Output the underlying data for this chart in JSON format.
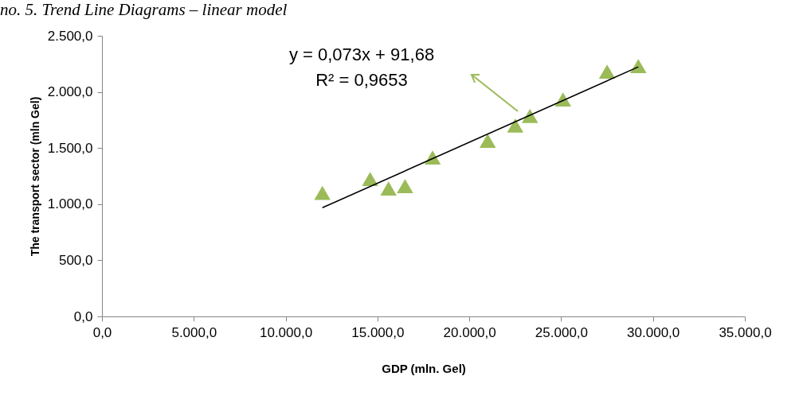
{
  "chart_data": {
    "type": "scatter",
    "title": "no. 5. Trend Line Diagrams – linear model",
    "xlabel": "GDP (mln. Gel)",
    "ylabel": "The transport sector (mln Gel)",
    "xlim": [
      0,
      35000
    ],
    "ylim": [
      0,
      2500
    ],
    "xticks": [
      {
        "value": 0,
        "label": "0,0"
      },
      {
        "value": 5000,
        "label": "5.000,0"
      },
      {
        "value": 10000,
        "label": "10.000,0"
      },
      {
        "value": 15000,
        "label": "15.000,0"
      },
      {
        "value": 20000,
        "label": "20.000,0"
      },
      {
        "value": 25000,
        "label": "25.000,0"
      },
      {
        "value": 30000,
        "label": "30.000,0"
      },
      {
        "value": 35000,
        "label": "35.000,0"
      }
    ],
    "yticks": [
      {
        "value": 0,
        "label": "0,0"
      },
      {
        "value": 500,
        "label": "500,0"
      },
      {
        "value": 1000,
        "label": "1.000,0"
      },
      {
        "value": 1500,
        "label": "1.500,0"
      },
      {
        "value": 2000,
        "label": "2.000,0"
      },
      {
        "value": 2500,
        "label": "2.500,0"
      }
    ],
    "grid": false,
    "series": [
      {
        "marker": "triangle",
        "color": "#9bbb59",
        "x": [
          12000,
          14600,
          15600,
          16500,
          18000,
          21000,
          22500,
          23300,
          25100,
          27500,
          29200
        ],
        "values": [
          1100,
          1225,
          1140,
          1160,
          1416,
          1565,
          1700,
          1785,
          1933,
          2180,
          2230
        ]
      },
      {
        "type": "line",
        "color": "#000000",
        "x": [
          12000,
          29200
        ],
        "values": [
          968,
          2223
        ]
      }
    ],
    "annotations": [
      "y = 0,073x + 91,68",
      "R² = 0,9653"
    ]
  }
}
